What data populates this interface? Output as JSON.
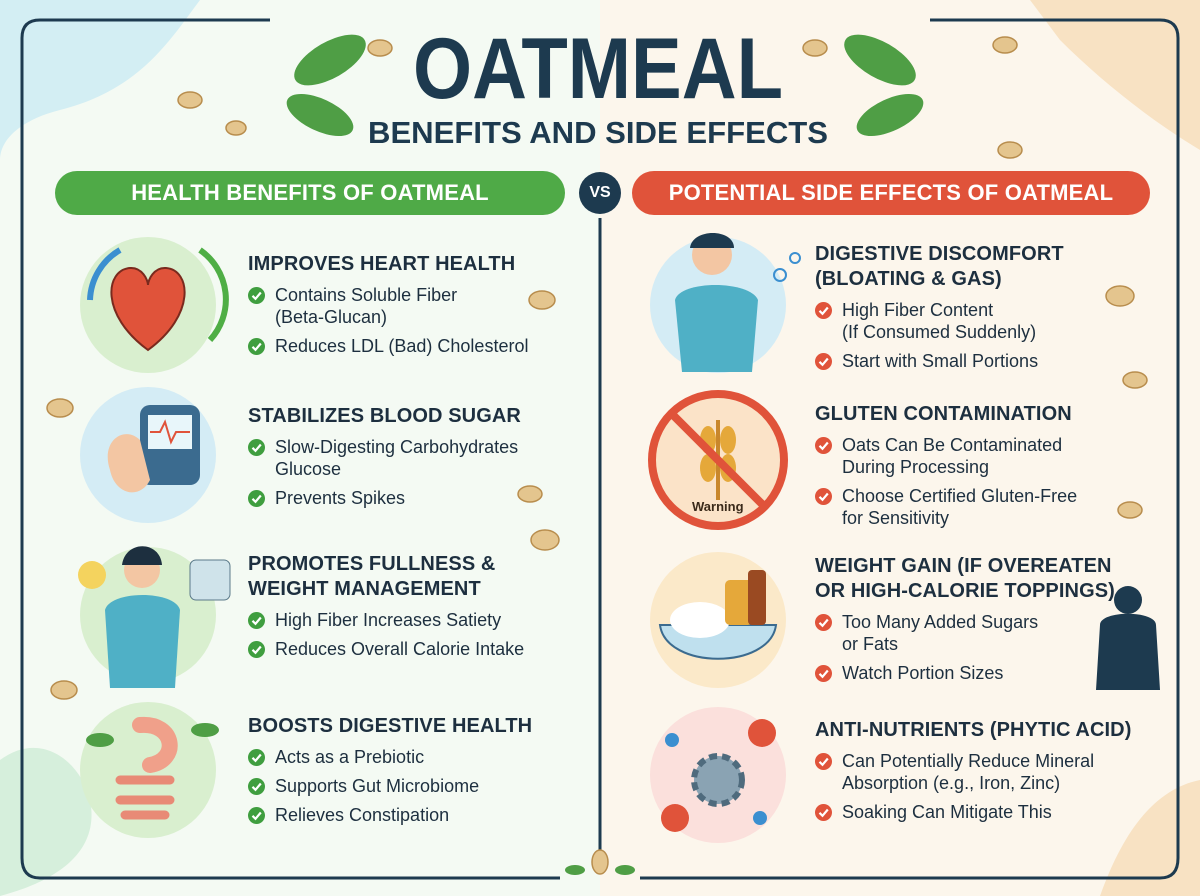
{
  "header": {
    "title": "OATMEAL",
    "subtitle": "BENEFITS AND SIDE EFFECTS"
  },
  "vs": "VS",
  "left": {
    "heading": "HEALTH BENEFITS OF OATMEAL",
    "items": [
      {
        "title": [
          "IMPROVES HEART HEALTH"
        ],
        "bullets": [
          [
            "Contains Soluble Fiber",
            "(Beta-Glucan)"
          ],
          [
            "Reduces LDL (Bad) Cholesterol"
          ]
        ]
      },
      {
        "title": [
          "STABILIZES BLOOD SUGAR"
        ],
        "bullets": [
          [
            "Slow-Digesting Carbohydrates",
            "Glucose"
          ],
          [
            "Prevents Spikes"
          ]
        ]
      },
      {
        "title": [
          "PROMOTES FULLNESS &",
          "WEIGHT MANAGEMENT"
        ],
        "bullets": [
          [
            "High Fiber Increases Satiety"
          ],
          [
            "Reduces Overall Calorie Intake"
          ]
        ]
      },
      {
        "title": [
          "BOOSTS DIGESTIVE HEALTH"
        ],
        "bullets": [
          [
            "Acts as a Prebiotic"
          ],
          [
            "Supports Gut Microbiome"
          ],
          [
            "Relieves Constipation"
          ]
        ]
      }
    ]
  },
  "right": {
    "heading": "POTENTIAL SIDE EFFECTS OF OATMEAL",
    "items": [
      {
        "title": [
          "DIGESTIVE DISCOMFORT",
          "(BLOATING & GAS)"
        ],
        "bullets": [
          [
            "High Fiber Content",
            "(If Consumed Suddenly)"
          ],
          [
            "Start with Small Portions"
          ]
        ]
      },
      {
        "title": [
          "GLUTEN CONTAMINATION"
        ],
        "icon_label": "Warning",
        "bullets": [
          [
            "Oats Can Be Contaminated",
            "During Processing"
          ],
          [
            "Choose Certified Gluten-Free",
            "for Sensitivity"
          ]
        ]
      },
      {
        "title": [
          "WEIGHT GAIN (IF OVEREATEN",
          "OR HIGH-CALORIE TOPPINGS)"
        ],
        "bullets": [
          [
            "Too Many Added Sugars",
            "or Fats"
          ],
          [
            "Watch Portion Sizes"
          ]
        ]
      },
      {
        "title": [
          "ANTI-NUTRIENTS (PHYTIC ACID)"
        ],
        "bullets": [
          [
            "Can Potentially Reduce Mineral",
            "Absorption (e.g., Iron, Zinc)"
          ],
          [
            "Soaking Can Mitigate This"
          ]
        ]
      }
    ]
  }
}
